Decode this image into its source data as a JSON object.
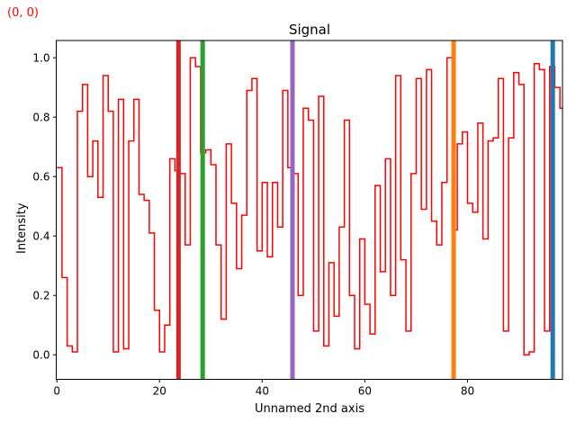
{
  "annotation": {
    "text": "(0, 0)",
    "color": "#ff0000"
  },
  "chart_data": {
    "type": "line",
    "subtype": "step-post",
    "title": "Signal",
    "xlabel": "Unnamed 2nd axis",
    "ylabel": "Intensity",
    "x_ticks": [
      0,
      20,
      40,
      60,
      80
    ],
    "y_ticks": [
      0.0,
      0.2,
      0.4,
      0.6,
      0.8,
      1.0
    ],
    "xlim": [
      -0.12,
      98.5
    ],
    "ylim": [
      -0.0825,
      1.058
    ],
    "grid": false,
    "legend": "none",
    "line_color": "#ff0000",
    "line_width": 1.5,
    "series": [
      {
        "name": "Signal",
        "x_start": 0,
        "x_step": 1,
        "values": [
          0.63,
          0.26,
          0.03,
          0.01,
          0.82,
          0.91,
          0.6,
          0.72,
          0.53,
          0.94,
          0.82,
          0.01,
          0.86,
          0.02,
          0.72,
          0.86,
          0.54,
          0.52,
          0.41,
          0.15,
          0.01,
          0.1,
          0.66,
          0.62,
          0.61,
          0.37,
          1.0,
          0.97,
          0.68,
          0.69,
          0.64,
          0.37,
          0.12,
          0.71,
          0.51,
          0.29,
          0.47,
          0.89,
          0.93,
          0.35,
          0.58,
          0.33,
          0.58,
          0.43,
          0.89,
          0.63,
          0.61,
          0.2,
          0.83,
          0.79,
          0.08,
          0.87,
          0.03,
          0.31,
          0.13,
          0.43,
          0.79,
          0.2,
          0.02,
          0.39,
          0.17,
          0.07,
          0.57,
          0.28,
          0.66,
          0.2,
          0.94,
          0.32,
          0.08,
          0.61,
          0.93,
          0.49,
          0.96,
          0.45,
          0.37,
          0.58,
          1.0,
          0.42,
          0.71,
          0.75,
          0.51,
          0.48,
          0.78,
          0.39,
          0.72,
          0.73,
          0.93,
          0.08,
          0.73,
          0.95,
          0.91,
          0.0,
          0.01,
          0.98,
          0.96,
          0.08,
          0.97,
          0.9,
          0.83
        ]
      }
    ],
    "vlines": [
      {
        "x": 23.7,
        "color": "#d62728",
        "width": 5
      },
      {
        "x": 28.4,
        "color": "#2ca02c",
        "width": 5
      },
      {
        "x": 45.9,
        "color": "#9467bd",
        "width": 5
      },
      {
        "x": 77.3,
        "color": "#ff7f0e",
        "width": 5
      },
      {
        "x": 96.6,
        "color": "#1f77b4",
        "width": 5
      }
    ]
  }
}
